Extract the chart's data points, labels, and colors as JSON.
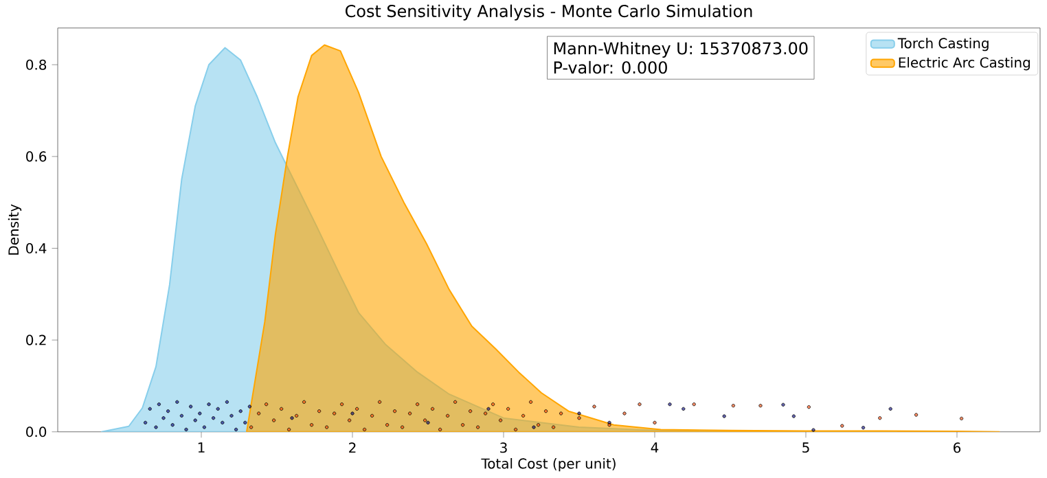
{
  "chart_data": {
    "type": "area",
    "title": "Cost Sensitivity Analysis - Monte Carlo Simulation",
    "xlabel": "Total Cost (per unit)",
    "ylabel": "Density",
    "annotations": [
      "Mann-Whitney U: 15370873.00",
      "P-valor: 0.000"
    ],
    "xlim": [
      0.05,
      6.55
    ],
    "ylim": [
      0,
      0.88
    ],
    "xticks": [
      1,
      2,
      3,
      4,
      5,
      6
    ],
    "yticks": [
      {
        "value": 0,
        "label": "0.0"
      },
      {
        "value": 0.2,
        "label": "0.2"
      },
      {
        "value": 0.4,
        "label": "0.4"
      },
      {
        "value": 0.6,
        "label": "0.6"
      },
      {
        "value": 0.8,
        "label": "0.8"
      }
    ],
    "legend": "top right",
    "series": [
      {
        "type": "scatter",
        "color": "#000080",
        "x": [
          0.63,
          0.66,
          0.7,
          0.72,
          0.75,
          0.78,
          0.81,
          0.84,
          0.87,
          0.9,
          0.93,
          0.96,
          0.99,
          1.02,
          1.05,
          1.08,
          1.11,
          1.14,
          1.17,
          1.2,
          1.23,
          1.26,
          1.29,
          1.32,
          1.6,
          2.0,
          2.5,
          2.9,
          3.2,
          3.5,
          3.7,
          4.1,
          4.19,
          4.46,
          4.85,
          4.92,
          5.05,
          5.38,
          5.56
        ],
        "values": [
          0.02,
          0.05,
          0.01,
          0.06,
          0.03,
          0.045,
          0.015,
          0.065,
          0.035,
          0.005,
          0.055,
          0.025,
          0.04,
          0.01,
          0.06,
          0.03,
          0.05,
          0.02,
          0.065,
          0.035,
          0.005,
          0.045,
          0.02,
          0.055,
          0.03,
          0.04,
          0.02,
          0.05,
          0.01,
          0.04,
          0.02,
          0.06,
          0.05,
          0.034,
          0.059,
          0.034,
          0.004,
          0.009,
          0.05
        ]
      },
      {
        "type": "scatter",
        "color": "#ff4500",
        "x": [
          1.33,
          1.38,
          1.43,
          1.48,
          1.53,
          1.58,
          1.63,
          1.68,
          1.73,
          1.78,
          1.83,
          1.88,
          1.93,
          1.98,
          2.03,
          2.08,
          2.13,
          2.18,
          2.23,
          2.28,
          2.33,
          2.38,
          2.43,
          2.48,
          2.53,
          2.58,
          2.63,
          2.68,
          2.73,
          2.78,
          2.83,
          2.88,
          2.93,
          2.98,
          3.03,
          3.08,
          3.13,
          3.18,
          3.23,
          3.28,
          3.33,
          3.38,
          3.5,
          3.6,
          3.7,
          3.8,
          3.9,
          4.0,
          4.26,
          4.52,
          4.7,
          5.02,
          5.24,
          5.49,
          5.73,
          6.03
        ],
        "values": [
          0.01,
          0.04,
          0.06,
          0.025,
          0.05,
          0.005,
          0.035,
          0.065,
          0.015,
          0.045,
          0.01,
          0.04,
          0.06,
          0.025,
          0.05,
          0.005,
          0.035,
          0.065,
          0.015,
          0.045,
          0.01,
          0.04,
          0.06,
          0.025,
          0.05,
          0.005,
          0.035,
          0.065,
          0.015,
          0.045,
          0.01,
          0.04,
          0.06,
          0.025,
          0.05,
          0.005,
          0.035,
          0.065,
          0.015,
          0.045,
          0.01,
          0.04,
          0.03,
          0.055,
          0.015,
          0.04,
          0.06,
          0.02,
          0.06,
          0.057,
          0.057,
          0.054,
          0.013,
          0.03,
          0.037,
          0.029
        ]
      },
      {
        "name": "Torch Casting",
        "color": "#87ceeb",
        "x": [
          0.34,
          0.52,
          0.61,
          0.7,
          0.79,
          0.87,
          0.96,
          1.05,
          1.157,
          1.26,
          1.37,
          1.49,
          1.61,
          1.76,
          1.92,
          2.04,
          2.22,
          2.43,
          2.64,
          3.0,
          3.5,
          4.0,
          4.5,
          5.0,
          5.6
        ],
        "values": [
          0,
          0.012,
          0.052,
          0.142,
          0.32,
          0.55,
          0.71,
          0.8,
          0.837,
          0.81,
          0.73,
          0.63,
          0.55,
          0.45,
          0.34,
          0.26,
          0.19,
          0.13,
          0.082,
          0.03,
          0.01,
          0.003,
          0.001,
          0,
          0
        ]
      },
      {
        "name": "Electric Arc Casting",
        "color": "#ffa500",
        "x": [
          1.3,
          1.35,
          1.42,
          1.49,
          1.57,
          1.64,
          1.73,
          1.815,
          1.92,
          2.04,
          2.19,
          2.34,
          2.49,
          2.64,
          2.79,
          2.95,
          3.1,
          3.25,
          3.43,
          3.73,
          4.04,
          4.5,
          5.0,
          5.5,
          6.0,
          6.28
        ],
        "values": [
          0,
          0.1,
          0.24,
          0.43,
          0.6,
          0.73,
          0.82,
          0.843,
          0.83,
          0.74,
          0.6,
          0.5,
          0.41,
          0.31,
          0.23,
          0.18,
          0.13,
          0.085,
          0.045,
          0.015,
          0.005,
          0.003,
          0.002,
          0.002,
          0.001,
          0
        ]
      }
    ]
  }
}
